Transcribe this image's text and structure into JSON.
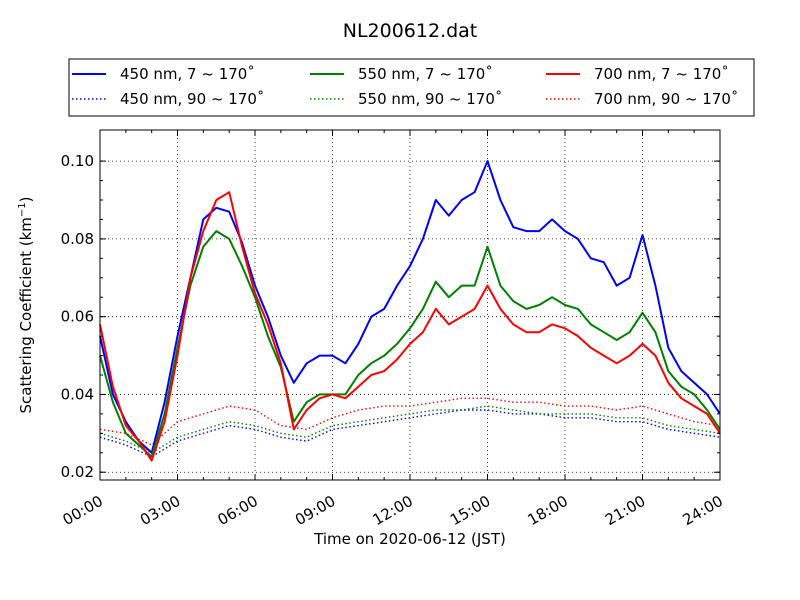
{
  "chart_data": {
    "type": "line",
    "title": "NL200612.dat",
    "xlabel": "Time on 2020-06-12 (JST)",
    "ylabel": "Scattering Coefficient (km",
    "ylabel_superscript": "−1",
    "ylabel_close": ")",
    "xlim": [
      0,
      24
    ],
    "ylim": [
      0.018,
      0.108
    ],
    "x_ticks": [
      0,
      3,
      6,
      9,
      12,
      15,
      18,
      21,
      24
    ],
    "x_tick_labels": [
      "00:00",
      "03:00",
      "06:00",
      "09:00",
      "12:00",
      "15:00",
      "18:00",
      "21:00",
      "24:00"
    ],
    "y_ticks": [
      0.02,
      0.04,
      0.06,
      0.08,
      0.1
    ],
    "y_tick_labels": [
      "0.02",
      "0.04",
      "0.06",
      "0.08",
      "0.10"
    ],
    "grid": true,
    "legend_position": "above plot",
    "legend": [
      {
        "label": "450 nm, 7 ~ 170˚",
        "color": "#0000ff",
        "style": "solid"
      },
      {
        "label": "550 nm, 7 ~ 170˚",
        "color": "#008000",
        "style": "solid"
      },
      {
        "label": "700 nm, 7 ~ 170˚",
        "color": "#ff0000",
        "style": "solid"
      },
      {
        "label": "450 nm, 90 ~ 170˚",
        "color": "#0000ff",
        "style": "dotted"
      },
      {
        "label": "550 nm, 90 ~ 170˚",
        "color": "#008000",
        "style": "dotted"
      },
      {
        "label": "700 nm, 90 ~ 170˚",
        "color": "#ff0000",
        "style": "dotted"
      }
    ],
    "series": [
      {
        "name": "450 nm, 7 ~ 170˚",
        "color": "#0000ff",
        "style": "solid",
        "x": [
          0,
          0.5,
          1,
          1.5,
          2,
          2.5,
          3,
          3.5,
          4,
          4.5,
          5,
          5.5,
          6,
          6.5,
          7,
          7.5,
          8,
          8.5,
          9,
          9.5,
          10,
          10.5,
          11,
          11.5,
          12,
          12.5,
          13,
          13.5,
          14,
          14.5,
          15,
          15.5,
          16,
          16.5,
          17,
          17.5,
          18,
          18.5,
          19,
          19.5,
          20,
          20.5,
          21,
          21.5,
          22,
          22.5,
          23,
          23.5,
          24
        ],
        "y": [
          0.055,
          0.04,
          0.033,
          0.028,
          0.025,
          0.038,
          0.055,
          0.07,
          0.085,
          0.088,
          0.087,
          0.079,
          0.068,
          0.06,
          0.05,
          0.043,
          0.048,
          0.05,
          0.05,
          0.048,
          0.053,
          0.06,
          0.062,
          0.068,
          0.073,
          0.08,
          0.09,
          0.086,
          0.09,
          0.092,
          0.1,
          0.09,
          0.083,
          0.082,
          0.082,
          0.085,
          0.082,
          0.08,
          0.075,
          0.074,
          0.068,
          0.07,
          0.081,
          0.068,
          0.052,
          0.046,
          0.043,
          0.04,
          0.035
        ]
      },
      {
        "name": "550 nm, 7 ~ 170˚",
        "color": "#008000",
        "style": "solid",
        "x": [
          0,
          0.5,
          1,
          1.5,
          2,
          2.5,
          3,
          3.5,
          4,
          4.5,
          5,
          5.5,
          6,
          6.5,
          7,
          7.5,
          8,
          8.5,
          9,
          9.5,
          10,
          10.5,
          11,
          11.5,
          12,
          12.5,
          13,
          13.5,
          14,
          14.5,
          15,
          15.5,
          16,
          16.5,
          17,
          17.5,
          18,
          18.5,
          19,
          19.5,
          20,
          20.5,
          21,
          21.5,
          22,
          22.5,
          23,
          23.5,
          24
        ],
        "y": [
          0.05,
          0.038,
          0.03,
          0.027,
          0.024,
          0.035,
          0.052,
          0.068,
          0.078,
          0.082,
          0.08,
          0.073,
          0.065,
          0.055,
          0.047,
          0.033,
          0.038,
          0.04,
          0.04,
          0.04,
          0.045,
          0.048,
          0.05,
          0.053,
          0.057,
          0.062,
          0.069,
          0.065,
          0.068,
          0.068,
          0.078,
          0.068,
          0.064,
          0.062,
          0.063,
          0.065,
          0.063,
          0.062,
          0.058,
          0.056,
          0.054,
          0.056,
          0.061,
          0.056,
          0.046,
          0.042,
          0.04,
          0.036,
          0.031
        ]
      },
      {
        "name": "700 nm, 7 ~ 170˚",
        "color": "#ff0000",
        "style": "solid",
        "x": [
          0,
          0.5,
          1,
          1.5,
          2,
          2.5,
          3,
          3.5,
          4,
          4.5,
          5,
          5.5,
          6,
          6.5,
          7,
          7.5,
          8,
          8.5,
          9,
          9.5,
          10,
          10.5,
          11,
          11.5,
          12,
          12.5,
          13,
          13.5,
          14,
          14.5,
          15,
          15.5,
          16,
          16.5,
          17,
          17.5,
          18,
          18.5,
          19,
          19.5,
          20,
          20.5,
          21,
          21.5,
          22,
          22.5,
          23,
          23.5,
          24
        ],
        "y": [
          0.058,
          0.042,
          0.032,
          0.028,
          0.023,
          0.033,
          0.05,
          0.07,
          0.082,
          0.09,
          0.092,
          0.078,
          0.066,
          0.058,
          0.048,
          0.031,
          0.036,
          0.039,
          0.04,
          0.039,
          0.042,
          0.045,
          0.046,
          0.049,
          0.053,
          0.056,
          0.062,
          0.058,
          0.06,
          0.062,
          0.068,
          0.062,
          0.058,
          0.056,
          0.056,
          0.058,
          0.057,
          0.055,
          0.052,
          0.05,
          0.048,
          0.05,
          0.053,
          0.05,
          0.043,
          0.039,
          0.037,
          0.035,
          0.03
        ]
      },
      {
        "name": "450 nm, 90 ~ 170˚",
        "color": "#0000ff",
        "style": "dotted",
        "x": [
          0,
          1,
          2,
          3,
          4,
          5,
          6,
          7,
          8,
          9,
          10,
          11,
          12,
          13,
          14,
          15,
          16,
          17,
          18,
          19,
          20,
          21,
          22,
          23,
          24
        ],
        "y": [
          0.029,
          0.027,
          0.024,
          0.028,
          0.03,
          0.032,
          0.031,
          0.029,
          0.028,
          0.031,
          0.032,
          0.033,
          0.034,
          0.035,
          0.036,
          0.036,
          0.035,
          0.035,
          0.034,
          0.034,
          0.033,
          0.033,
          0.031,
          0.03,
          0.029
        ]
      },
      {
        "name": "550 nm, 90 ~ 170˚",
        "color": "#008000",
        "style": "dotted",
        "x": [
          0,
          1,
          2,
          3,
          4,
          5,
          6,
          7,
          8,
          9,
          10,
          11,
          12,
          13,
          14,
          15,
          16,
          17,
          18,
          19,
          20,
          21,
          22,
          23,
          24
        ],
        "y": [
          0.03,
          0.028,
          0.025,
          0.029,
          0.031,
          0.033,
          0.032,
          0.03,
          0.029,
          0.032,
          0.033,
          0.034,
          0.035,
          0.036,
          0.036,
          0.037,
          0.036,
          0.035,
          0.035,
          0.035,
          0.034,
          0.034,
          0.032,
          0.031,
          0.03
        ]
      },
      {
        "name": "700 nm, 90 ~ 170˚",
        "color": "#ff0000",
        "style": "dotted",
        "x": [
          0,
          1,
          2,
          3,
          4,
          5,
          6,
          7,
          8,
          9,
          10,
          11,
          12,
          13,
          14,
          15,
          16,
          17,
          18,
          19,
          20,
          21,
          22,
          23,
          24
        ],
        "y": [
          0.031,
          0.03,
          0.027,
          0.033,
          0.035,
          0.037,
          0.036,
          0.032,
          0.031,
          0.034,
          0.036,
          0.037,
          0.037,
          0.038,
          0.039,
          0.039,
          0.038,
          0.038,
          0.037,
          0.037,
          0.036,
          0.037,
          0.035,
          0.033,
          0.032
        ]
      }
    ]
  }
}
